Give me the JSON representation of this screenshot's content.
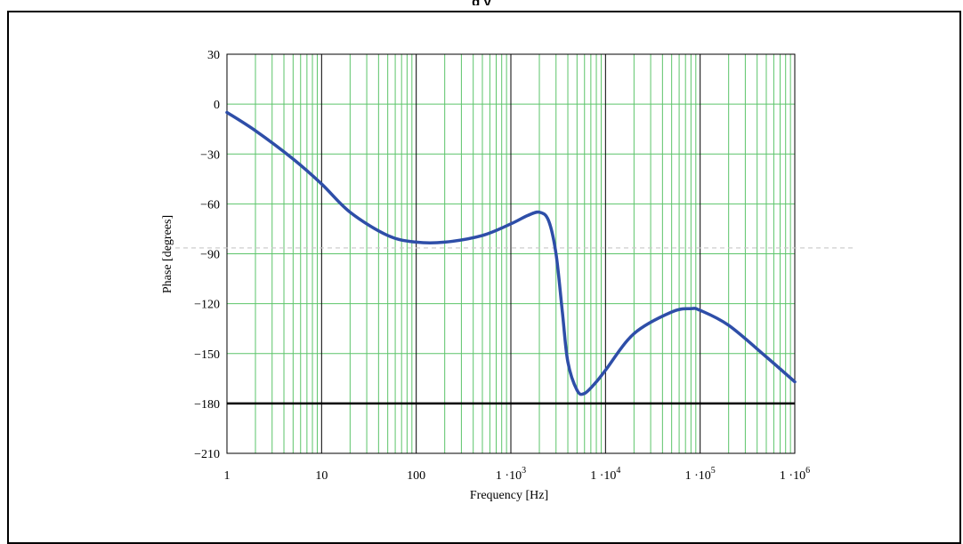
{
  "header": {
    "title_fragment": "g               y"
  },
  "chart_data": {
    "type": "line",
    "title": "",
    "xlabel": "Frequency [Hz]",
    "ylabel": "Phase [degrees]",
    "x_scale": "log",
    "xlim": [
      1,
      1000000
    ],
    "ylim": [
      -210,
      30
    ],
    "grid": true,
    "y_ticks": [
      30,
      0,
      -30,
      -60,
      -90,
      -120,
      -150,
      -180,
      -210
    ],
    "y_tick_labels": [
      "30",
      "0",
      "−30",
      "−60",
      "−90",
      "−120",
      "−150",
      "−180",
      "−210"
    ],
    "x_ticks": [
      1,
      10,
      100,
      1000,
      10000,
      100000,
      1000000
    ],
    "x_tick_labels": [
      {
        "text": "1",
        "sup": ""
      },
      {
        "text": "10",
        "sup": ""
      },
      {
        "text": "100",
        "sup": ""
      },
      {
        "text": "1 ·10",
        "sup": "3"
      },
      {
        "text": "1 ·10",
        "sup": "4"
      },
      {
        "text": "1 ·10",
        "sup": "5"
      },
      {
        "text": "1 ·10",
        "sup": "6"
      }
    ],
    "reference_line": {
      "y": -180
    },
    "series": [
      {
        "color": "#2e4ea8",
        "x": [
          1,
          2,
          5,
          10,
          20,
          50,
          100,
          200,
          500,
          1000,
          1500,
          2000,
          2500,
          3000,
          3500,
          4000,
          5000,
          6000,
          8000,
          10000,
          20000,
          50000,
          80000,
          100000,
          200000,
          500000,
          1000000
        ],
        "y": [
          -5,
          -16,
          -33,
          -48,
          -65,
          -79,
          -83,
          -83,
          -79,
          -72,
          -67,
          -65,
          -70,
          -90,
          -125,
          -155,
          -172,
          -174,
          -167,
          -160,
          -138,
          -125,
          -123,
          -124,
          -133,
          -152,
          -167
        ]
      }
    ],
    "colors": {
      "grid_minor": "#5cc46a",
      "grid_major": "#000000",
      "line": "#2e4ea8",
      "reference": "#000000",
      "dashed": "#c8c8c8"
    }
  }
}
